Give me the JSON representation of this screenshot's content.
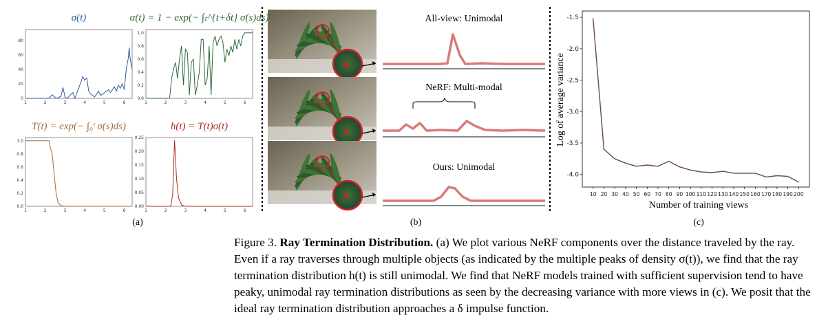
{
  "panel_a": {
    "label": "(a)",
    "plots": [
      {
        "key": "sigma",
        "title": "σ(t)",
        "color": "#2f5aa2",
        "xlim": [
          1,
          6.4
        ],
        "ylim": [
          0,
          95
        ],
        "xticks": [
          "1",
          "2",
          "3",
          "4",
          "5",
          "6"
        ],
        "yticks": [
          "0",
          "20",
          "40",
          "60",
          "80"
        ]
      },
      {
        "key": "alpha",
        "title": "α(t) = 1 − exp(− ∫ₜ^{t+δt} σ(s)ds)",
        "color": "#2e6b3a",
        "xlim": [
          1,
          6.4
        ],
        "ylim": [
          0,
          1.05
        ],
        "xticks": [
          "1",
          "2",
          "3",
          "4",
          "5",
          "6"
        ],
        "yticks": [
          "0.0",
          "0.2",
          "0.4",
          "0.6",
          "0.8",
          "1.0"
        ]
      },
      {
        "key": "T",
        "title": "T(t) = exp(− ∫₀ᵗ σ(s)ds)",
        "color": "#a66a38",
        "xlim": [
          1,
          6.4
        ],
        "ylim": [
          0,
          1.05
        ],
        "xticks": [
          "1",
          "2",
          "3",
          "4",
          "5",
          "6"
        ],
        "yticks": [
          "0.0",
          "0.2",
          "0.4",
          "0.6",
          "0.8",
          "1.0"
        ]
      },
      {
        "key": "h",
        "title": "h(t) = T(t)σ(t)",
        "color": "#a3301e",
        "xlim": [
          1,
          6.4
        ],
        "ylim": [
          0,
          0.25
        ],
        "xticks": [
          "1",
          "2",
          "3",
          "4",
          "5",
          "6"
        ],
        "yticks": [
          "0.00",
          "0.05",
          "0.10",
          "0.15",
          "0.20",
          "0.25"
        ]
      }
    ]
  },
  "panel_b": {
    "label": "(b)",
    "titles": [
      "All-view: Unimodal",
      "NeRF: Multi-modal",
      "Ours: Unimodal"
    ]
  },
  "chart_data": {
    "type": "line",
    "xlabel": "Number of training views",
    "ylabel": "Log of average variance",
    "x": [
      10,
      20,
      30,
      40,
      50,
      60,
      70,
      80,
      90,
      100,
      110,
      120,
      130,
      140,
      150,
      160,
      170,
      180,
      190,
      200
    ],
    "values": [
      -1.52,
      -3.6,
      -3.75,
      -3.82,
      -3.87,
      -3.85,
      -3.87,
      -3.79,
      -3.88,
      -3.93,
      -3.96,
      -3.97,
      -3.95,
      -3.98,
      -3.98,
      -3.98,
      -4.04,
      -4.02,
      -4.03,
      -4.12
    ],
    "xlim": [
      0,
      210
    ],
    "ylim": [
      -4.2,
      -1.4
    ],
    "xticks": [
      "10",
      "20",
      "30",
      "40",
      "50",
      "60",
      "70",
      "80",
      "90",
      "100",
      "110",
      "120",
      "130",
      "140",
      "150",
      "160",
      "170",
      "180",
      "190",
      "200"
    ],
    "yticks": [
      "-1.5",
      "-2.0",
      "-2.5",
      "-3.0",
      "-3.5",
      "-4.0"
    ],
    "line_color": "#6b4a3c",
    "grid": false,
    "label": "(c)"
  },
  "caption": {
    "prefix": "Figure 3. ",
    "bold": "Ray Termination Distribution.",
    "text": " (a) We plot various NeRF components over the distance traveled by the ray. Even if a ray traverses through multiple objects (as indicated by the multiple peaks of density σ(t)), we find that the ray termination distribution h(t) is still unimodal. We find that NeRF models trained with sufficient supervision tend to have peaky, unimodal ray termination distributions as seen by the decreasing variance with more views in (c). We posit that the ideal ray termination distribution approaches a δ impulse function."
  }
}
